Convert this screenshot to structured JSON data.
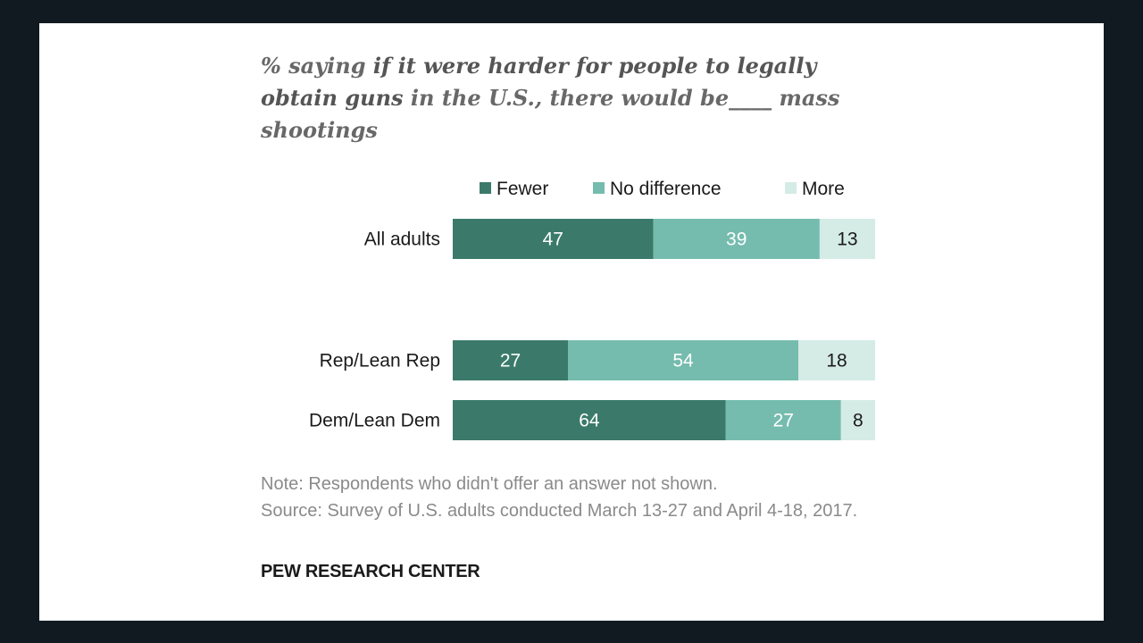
{
  "title": {
    "part1": "% saying ",
    "part2": "if it were harder for people to legally obtain guns",
    "part3": " in the U.S., there would be____ mass shootings"
  },
  "colors": {
    "fewer": "#3b7a6a",
    "no_difference": "#75bcae",
    "more": "#d5ebe6",
    "label_dark": "#ffffff",
    "label_light": "#1a1a1a"
  },
  "chart_data": {
    "type": "bar",
    "orientation": "horizontal",
    "stacked": true,
    "title": "% saying if it were harder for people to legally obtain guns in the U.S., there would be____ mass shootings",
    "categories": [
      "All adults",
      "Rep/Lean Rep",
      "Dem/Lean Dem"
    ],
    "series": [
      {
        "name": "Fewer",
        "values": [
          47,
          27,
          64
        ]
      },
      {
        "name": "No difference",
        "values": [
          39,
          54,
          27
        ]
      },
      {
        "name": "More",
        "values": [
          13,
          18,
          8
        ]
      }
    ],
    "xlim": [
      0,
      99
    ],
    "legend_position": "top",
    "grid": false
  },
  "note": "Note: Respondents who didn't offer an answer not shown.",
  "source": "Source: Survey of U.S. adults conducted March 13-27 and April 4-18, 2017.",
  "brand": "PEW RESEARCH CENTER"
}
